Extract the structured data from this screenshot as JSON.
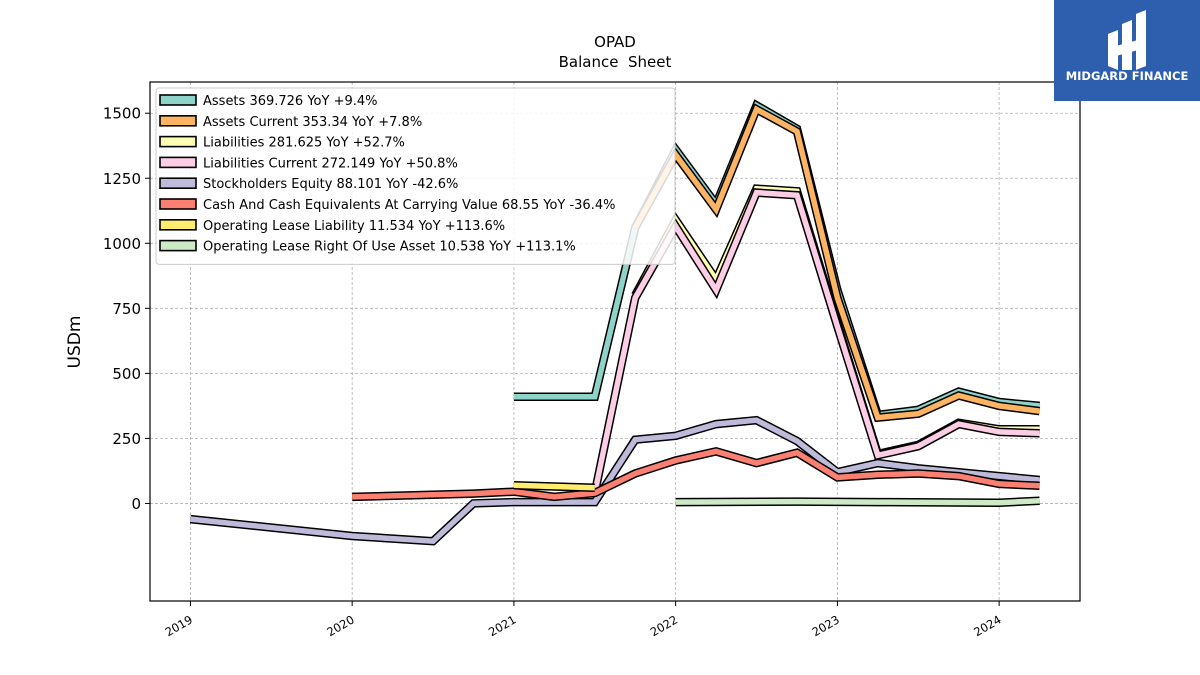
{
  "chart_data": {
    "type": "line",
    "title": "OPAD",
    "subtitle": "Balance  Sheet",
    "ylabel": "USDm",
    "xlabel": "",
    "xlim": [
      2018.75,
      2024.5
    ],
    "ylim": [
      -375,
      1620
    ],
    "x_ticks": [
      2019,
      2020,
      2021,
      2022,
      2023,
      2024
    ],
    "x_tick_labels": [
      "2019",
      "2020",
      "2021",
      "2022",
      "2023",
      "2024"
    ],
    "y_ticks": [
      0,
      250,
      500,
      750,
      1000,
      1250,
      1500
    ],
    "y_tick_labels": [
      "0",
      "250",
      "500",
      "750",
      "1000",
      "1250",
      "1500"
    ],
    "grid": true,
    "legend_position": "top-left",
    "series": [
      {
        "name": "Assets",
        "legend": "Assets  369.726 YoY +9.4%",
        "color": "#8dd3c7",
        "points": [
          [
            2021.0,
            410
          ],
          [
            2021.5,
            410
          ],
          [
            2021.75,
            1060
          ],
          [
            2022.0,
            1360
          ],
          [
            2022.25,
            1150
          ],
          [
            2022.5,
            1530
          ],
          [
            2022.75,
            1440
          ],
          [
            2023.0,
            820
          ],
          [
            2023.25,
            340
          ],
          [
            2023.5,
            360
          ],
          [
            2023.75,
            430
          ],
          [
            2024.0,
            390
          ],
          [
            2024.25,
            375
          ]
        ]
      },
      {
        "name": "Assets Current",
        "legend": "Assets Current  353.34 YoY +7.8%",
        "color": "#fdb462",
        "points": [
          [
            2021.75,
            1060
          ],
          [
            2022.0,
            1340
          ],
          [
            2022.25,
            1130
          ],
          [
            2022.5,
            1515
          ],
          [
            2022.75,
            1430
          ],
          [
            2023.0,
            790
          ],
          [
            2023.25,
            330
          ],
          [
            2023.5,
            345
          ],
          [
            2023.75,
            415
          ],
          [
            2024.0,
            375
          ],
          [
            2024.25,
            355
          ]
        ]
      },
      {
        "name": "Liabilities",
        "legend": "Liabilities  281.625 YoY +52.7%",
        "color": "#ffffb3",
        "points": [
          [
            2021.75,
            800
          ],
          [
            2022.0,
            1090
          ],
          [
            2022.25,
            860
          ],
          [
            2022.5,
            1210
          ],
          [
            2022.75,
            1200
          ],
          [
            2023.0,
            690
          ],
          [
            2023.25,
            190
          ],
          [
            2023.5,
            225
          ],
          [
            2023.75,
            310
          ],
          [
            2024.0,
            285
          ],
          [
            2024.25,
            285
          ]
        ]
      },
      {
        "name": "Liabilities Current",
        "legend": "Liabilities Current  272.149 YoY +50.8%",
        "color": "#fccde5",
        "points": [
          [
            2021.5,
            40
          ],
          [
            2021.75,
            790
          ],
          [
            2022.0,
            1065
          ],
          [
            2022.25,
            820
          ],
          [
            2022.5,
            1195
          ],
          [
            2022.75,
            1185
          ],
          [
            2023.0,
            680
          ],
          [
            2023.25,
            185
          ],
          [
            2023.5,
            220
          ],
          [
            2023.75,
            305
          ],
          [
            2024.0,
            275
          ],
          [
            2024.25,
            270
          ]
        ]
      },
      {
        "name": "Stockholders Equity",
        "legend": "Stockholders Equity  88.101 YoY -42.6%",
        "color": "#bebada",
        "points": [
          [
            2019.0,
            -60
          ],
          [
            2020.0,
            -125
          ],
          [
            2020.5,
            -145
          ],
          [
            2020.75,
            0
          ],
          [
            2021.0,
            5
          ],
          [
            2021.5,
            5
          ],
          [
            2021.75,
            245
          ],
          [
            2022.0,
            260
          ],
          [
            2022.25,
            305
          ],
          [
            2022.5,
            320
          ],
          [
            2022.75,
            240
          ],
          [
            2023.0,
            120
          ],
          [
            2023.25,
            155
          ],
          [
            2023.5,
            135
          ],
          [
            2023.75,
            120
          ],
          [
            2024.0,
            105
          ],
          [
            2024.25,
            90
          ]
        ]
      },
      {
        "name": "Cash And Cash Equivalents At Carrying Value",
        "legend": "Cash And Cash Equivalents At Carrying Value  68.55 YoY -36.4%",
        "color": "#fb8072",
        "points": [
          [
            2020.0,
            25
          ],
          [
            2020.75,
            38
          ],
          [
            2021.0,
            45
          ],
          [
            2021.25,
            25
          ],
          [
            2021.5,
            40
          ],
          [
            2021.75,
            115
          ],
          [
            2022.0,
            165
          ],
          [
            2022.25,
            200
          ],
          [
            2022.5,
            155
          ],
          [
            2022.75,
            195
          ],
          [
            2023.0,
            100
          ],
          [
            2023.25,
            110
          ],
          [
            2023.5,
            115
          ],
          [
            2023.75,
            105
          ],
          [
            2024.0,
            75
          ],
          [
            2024.25,
            68
          ]
        ]
      },
      {
        "name": "Operating Lease Liability",
        "legend": "Operating Lease Liability  11.534 YoY +113.6%",
        "color": "#ffed6f",
        "points": [
          [
            2021.0,
            70
          ],
          [
            2021.5,
            60
          ]
        ]
      },
      {
        "name": "Operating Lease Right Of Use Asset",
        "legend": "Operating Lease Right Of Use Asset  10.538 YoY +113.1%",
        "color": "#ccebc5",
        "points": [
          [
            2022.0,
            5
          ],
          [
            2022.75,
            7
          ],
          [
            2023.25,
            5
          ],
          [
            2024.0,
            3
          ],
          [
            2024.25,
            10
          ]
        ]
      }
    ]
  },
  "logo": {
    "text": "MIDGARD FINANCE",
    "background": "#2e5fae"
  }
}
